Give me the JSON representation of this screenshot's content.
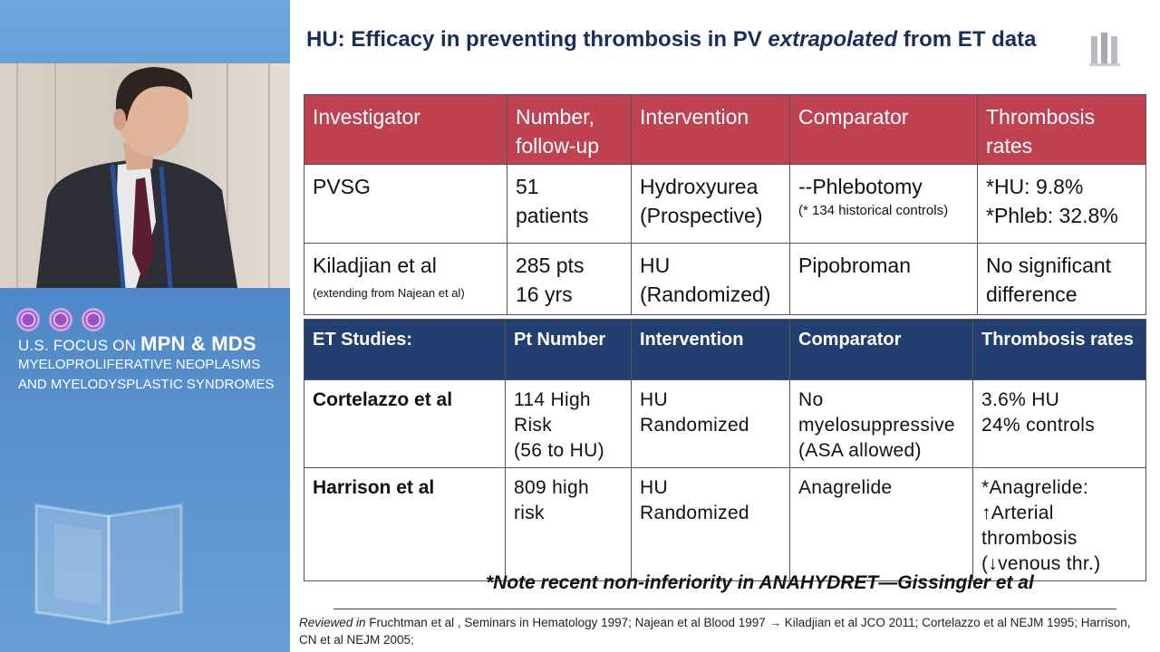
{
  "slide": {
    "title_prefix": "HU: Efficacy in preventing thrombosis in PV ",
    "title_italic": "extrapolated",
    "title_suffix": " from ET data"
  },
  "pv_table": {
    "headers": [
      "Investigator",
      "Number, follow-up",
      "Intervention",
      "Comparator",
      "Thrombosis rates"
    ],
    "rows": [
      {
        "investigator": "PVSG",
        "investigator_note": "",
        "number_line1": "51",
        "number_line2": "patients",
        "intervention_line1": "Hydroxyurea",
        "intervention_line2": "(Prospective)",
        "comparator": "--Phlebotomy",
        "comparator_note": "(* 134 historical controls)",
        "rates_line1": "*HU: 9.8%",
        "rates_line2": "*Phleb: 32.8%"
      },
      {
        "investigator": "Kiladjian et al",
        "investigator_note": "(extending from Najean et al)",
        "number_line1": "285 pts",
        "number_line2": "16 yrs",
        "intervention_line1": "HU",
        "intervention_line2": "(Randomized)",
        "comparator": "Pipobroman",
        "comparator_note": "",
        "rates_line1": "No significant",
        "rates_line2": "difference"
      }
    ]
  },
  "et_table": {
    "headers": [
      "ET Studies:",
      "Pt Number",
      "Intervention",
      "Comparator",
      "Thrombosis rates"
    ],
    "rows": [
      {
        "study": "Cortelazzo et al",
        "number_lines": [
          "114 High",
          "Risk",
          "(56 to HU)"
        ],
        "intervention_lines": [
          "HU",
          "Randomized"
        ],
        "comparator_lines": [
          "No",
          "myelosuppressive",
          "(ASA allowed)"
        ],
        "rates_lines": [
          "3.6% HU",
          "24% controls"
        ]
      },
      {
        "study": "Harrison et al",
        "number_lines": [
          "809 high",
          "risk"
        ],
        "intervention_lines": [
          "HU",
          "Randomized"
        ],
        "comparator_lines": [
          "Anagrelide"
        ],
        "rates_lines": [
          "*Anagrelide:",
          "↑Arterial",
          "thrombosis",
          "(↓venous thr.)"
        ]
      }
    ]
  },
  "note": "*Note recent non-inferiority in ANAHYDRET—Gissingler et al",
  "references": {
    "lead": "Reviewed in",
    "text": " Fruchtman et al , Seminars in Hematology 1997; Najean et al Blood 1997 → Kiladjian et al JCO 2011; Cortelazzo et al NEJM 1995; Harrison, CN et al NEJM 2005;"
  },
  "branding": {
    "line1_prefix": "U.S. FOCUS ON ",
    "line1_bold": "MPN & MDS",
    "line2": "MYELOPROLIFERATIVE NEOPLASMS",
    "line3": "AND MYELODYSPLASTIC SYNDROMES"
  },
  "colors": {
    "pv_header": "#c0414f",
    "et_header": "#233f6f",
    "title": "#1b2e5a",
    "sidebar": "#5b93d0"
  },
  "icons": {
    "brand_logo": "triple-ring-logo-icon",
    "corner_logo": "columns-logo-icon",
    "book": "open-book-graphic-icon"
  }
}
